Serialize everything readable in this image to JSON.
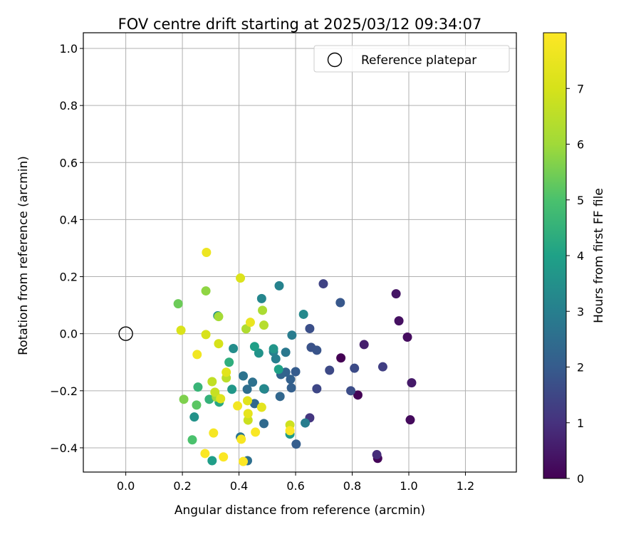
{
  "chart_data": {
    "type": "scatter",
    "title": "FOV centre drift starting at 2025/03/12 09:34:07",
    "xlabel": "Angular distance from reference (arcmin)",
    "ylabel": "Rotation from reference (arcmin)",
    "xlim": [
      -0.15,
      1.38
    ],
    "ylim": [
      -0.485,
      1.055
    ],
    "xticks": [
      0.0,
      0.2,
      0.4,
      0.6,
      0.8,
      1.0,
      1.2
    ],
    "yticks": [
      -0.4,
      -0.2,
      0.0,
      0.2,
      0.4,
      0.6,
      0.8,
      1.0
    ],
    "xtick_labels": [
      "0.0",
      "0.2",
      "0.4",
      "0.6",
      "0.8",
      "1.0",
      "1.2"
    ],
    "ytick_labels": [
      "−0.4",
      "−0.2",
      "0.0",
      "0.2",
      "0.4",
      "0.6",
      "0.8",
      "1.0"
    ],
    "grid": true,
    "legend": {
      "placement": "top-right",
      "entries": [
        "Reference platepar"
      ]
    },
    "reference_point": {
      "x": 0.0,
      "y": 0.0
    },
    "colorbar": {
      "label": "Hours from first FF file",
      "colormap": "viridis",
      "range": [
        0,
        8
      ],
      "ticks": [
        0,
        1,
        2,
        3,
        4,
        5,
        6,
        7
      ],
      "tick_labels": [
        "0",
        "1",
        "2",
        "3",
        "4",
        "5",
        "6",
        "7"
      ]
    },
    "points": [
      {
        "x": 0.76,
        "y": -0.085,
        "c": 0.0
      },
      {
        "x": 0.82,
        "y": -0.215,
        "c": 0.05
      },
      {
        "x": 0.89,
        "y": -0.437,
        "c": 0.1
      },
      {
        "x": 1.005,
        "y": -0.302,
        "c": 0.18
      },
      {
        "x": 0.995,
        "y": -0.012,
        "c": 0.25
      },
      {
        "x": 0.965,
        "y": 0.045,
        "c": 0.3
      },
      {
        "x": 0.955,
        "y": 0.14,
        "c": 0.4
      },
      {
        "x": 1.01,
        "y": -0.172,
        "c": 0.5
      },
      {
        "x": 0.842,
        "y": -0.038,
        "c": 0.6
      },
      {
        "x": 0.887,
        "y": -0.424,
        "c": 0.9
      },
      {
        "x": 0.65,
        "y": -0.295,
        "c": 1.1
      },
      {
        "x": 0.908,
        "y": -0.116,
        "c": 1.3
      },
      {
        "x": 0.698,
        "y": 0.175,
        "c": 1.4
      },
      {
        "x": 0.675,
        "y": -0.193,
        "c": 1.5
      },
      {
        "x": 0.72,
        "y": -0.128,
        "c": 1.55
      },
      {
        "x": 0.808,
        "y": -0.121,
        "c": 1.6
      },
      {
        "x": 0.795,
        "y": -0.2,
        "c": 1.65
      },
      {
        "x": 0.65,
        "y": 0.018,
        "c": 1.7
      },
      {
        "x": 0.655,
        "y": -0.048,
        "c": 1.75
      },
      {
        "x": 0.675,
        "y": -0.058,
        "c": 1.8
      },
      {
        "x": 0.758,
        "y": 0.109,
        "c": 1.9
      },
      {
        "x": 0.6,
        "y": -0.133,
        "c": 2.0
      },
      {
        "x": 0.602,
        "y": -0.387,
        "c": 2.05
      },
      {
        "x": 0.585,
        "y": -0.19,
        "c": 2.1
      },
      {
        "x": 0.582,
        "y": -0.16,
        "c": 2.15
      },
      {
        "x": 0.565,
        "y": -0.135,
        "c": 2.2
      },
      {
        "x": 0.548,
        "y": -0.143,
        "c": 2.25
      },
      {
        "x": 0.545,
        "y": -0.22,
        "c": 2.3
      },
      {
        "x": 0.455,
        "y": -0.245,
        "c": 2.35
      },
      {
        "x": 0.488,
        "y": -0.315,
        "c": 2.4
      },
      {
        "x": 0.49,
        "y": -0.194,
        "c": 2.45
      },
      {
        "x": 0.429,
        "y": -0.195,
        "c": 2.5
      },
      {
        "x": 0.43,
        "y": -0.445,
        "c": 2.55
      },
      {
        "x": 0.448,
        "y": -0.17,
        "c": 2.6
      },
      {
        "x": 0.415,
        "y": -0.148,
        "c": 2.65
      },
      {
        "x": 0.405,
        "y": -0.362,
        "c": 2.7
      },
      {
        "x": 0.565,
        "y": -0.065,
        "c": 2.8
      },
      {
        "x": 0.587,
        "y": -0.005,
        "c": 2.9
      },
      {
        "x": 0.634,
        "y": -0.313,
        "c": 2.95
      },
      {
        "x": 0.53,
        "y": -0.088,
        "c": 3.0
      },
      {
        "x": 0.522,
        "y": -0.063,
        "c": 3.05
      },
      {
        "x": 0.542,
        "y": 0.168,
        "c": 3.1
      },
      {
        "x": 0.48,
        "y": 0.123,
        "c": 3.2
      },
      {
        "x": 0.488,
        "y": -0.193,
        "c": 3.25
      },
      {
        "x": 0.628,
        "y": 0.068,
        "c": 3.3
      },
      {
        "x": 0.38,
        "y": -0.052,
        "c": 3.4
      },
      {
        "x": 0.325,
        "y": 0.063,
        "c": 3.5
      },
      {
        "x": 0.242,
        "y": -0.292,
        "c": 3.55
      },
      {
        "x": 0.47,
        "y": -0.068,
        "c": 3.6
      },
      {
        "x": 0.522,
        "y": -0.053,
        "c": 3.65
      },
      {
        "x": 0.375,
        "y": -0.195,
        "c": 3.7
      },
      {
        "x": 0.58,
        "y": -0.352,
        "c": 3.8
      },
      {
        "x": 0.305,
        "y": -0.445,
        "c": 3.9
      },
      {
        "x": 0.455,
        "y": -0.045,
        "c": 3.95
      },
      {
        "x": 0.54,
        "y": -0.125,
        "c": 4.0
      },
      {
        "x": 0.33,
        "y": -0.24,
        "c": 4.2
      },
      {
        "x": 0.365,
        "y": -0.1,
        "c": 4.4
      },
      {
        "x": 0.295,
        "y": -0.23,
        "c": 4.5
      },
      {
        "x": 0.255,
        "y": -0.187,
        "c": 4.6
      },
      {
        "x": 0.235,
        "y": -0.372,
        "c": 5.0
      },
      {
        "x": 0.25,
        "y": -0.25,
        "c": 5.2
      },
      {
        "x": 0.185,
        "y": 0.105,
        "c": 5.4
      },
      {
        "x": 0.205,
        "y": -0.23,
        "c": 5.6
      },
      {
        "x": 0.283,
        "y": 0.15,
        "c": 5.8
      },
      {
        "x": 0.32,
        "y": -0.222,
        "c": 6.0
      },
      {
        "x": 0.328,
        "y": 0.06,
        "c": 6.1
      },
      {
        "x": 0.483,
        "y": 0.082,
        "c": 6.2
      },
      {
        "x": 0.425,
        "y": 0.017,
        "c": 6.3
      },
      {
        "x": 0.488,
        "y": 0.03,
        "c": 6.4
      },
      {
        "x": 0.355,
        "y": -0.155,
        "c": 6.5
      },
      {
        "x": 0.305,
        "y": -0.168,
        "c": 6.6
      },
      {
        "x": 0.315,
        "y": -0.205,
        "c": 6.7
      },
      {
        "x": 0.432,
        "y": -0.303,
        "c": 6.8
      },
      {
        "x": 0.58,
        "y": -0.32,
        "c": 6.85
      },
      {
        "x": 0.328,
        "y": -0.035,
        "c": 7.0
      },
      {
        "x": 0.283,
        "y": -0.003,
        "c": 7.05
      },
      {
        "x": 0.195,
        "y": 0.012,
        "c": 7.1
      },
      {
        "x": 0.405,
        "y": 0.195,
        "c": 7.15
      },
      {
        "x": 0.335,
        "y": -0.228,
        "c": 7.2
      },
      {
        "x": 0.43,
        "y": -0.235,
        "c": 7.25
      },
      {
        "x": 0.355,
        "y": -0.135,
        "c": 7.3
      },
      {
        "x": 0.48,
        "y": -0.258,
        "c": 7.35
      },
      {
        "x": 0.432,
        "y": -0.28,
        "c": 7.4
      },
      {
        "x": 0.44,
        "y": 0.04,
        "c": 7.5
      },
      {
        "x": 0.285,
        "y": 0.285,
        "c": 7.6
      },
      {
        "x": 0.252,
        "y": -0.073,
        "c": 7.7
      },
      {
        "x": 0.395,
        "y": -0.253,
        "c": 7.75
      },
      {
        "x": 0.31,
        "y": -0.348,
        "c": 7.8
      },
      {
        "x": 0.408,
        "y": -0.37,
        "c": 7.85
      },
      {
        "x": 0.458,
        "y": -0.345,
        "c": 7.9
      },
      {
        "x": 0.28,
        "y": -0.42,
        "c": 7.92
      },
      {
        "x": 0.345,
        "y": -0.432,
        "c": 7.95
      },
      {
        "x": 0.415,
        "y": -0.448,
        "c": 7.97
      },
      {
        "x": 0.58,
        "y": -0.34,
        "c": 7.99
      }
    ]
  }
}
